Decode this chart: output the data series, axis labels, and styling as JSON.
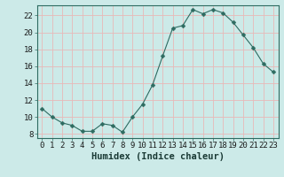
{
  "x": [
    0,
    1,
    2,
    3,
    4,
    5,
    6,
    7,
    8,
    9,
    10,
    11,
    12,
    13,
    14,
    15,
    16,
    17,
    18,
    19,
    20,
    21,
    22,
    23
  ],
  "y": [
    11,
    10,
    9.3,
    9,
    8.3,
    8.3,
    9.2,
    9,
    8.2,
    10,
    11.5,
    13.8,
    17.2,
    20.5,
    20.8,
    22.7,
    22.2,
    22.7,
    22.3,
    21.2,
    19.7,
    18.2,
    16.3,
    15.3
  ],
  "line_color": "#2e6b61",
  "marker": "D",
  "marker_size": 2.5,
  "bg_color": "#cceae8",
  "grid_color": "#e8b8b8",
  "xlabel": "Humidex (Indice chaleur)",
  "ylim": [
    7.5,
    23.2
  ],
  "xlim": [
    -0.5,
    23.5
  ],
  "yticks": [
    8,
    10,
    12,
    14,
    16,
    18,
    20,
    22
  ],
  "xticks": [
    0,
    1,
    2,
    3,
    4,
    5,
    6,
    7,
    8,
    9,
    10,
    11,
    12,
    13,
    14,
    15,
    16,
    17,
    18,
    19,
    20,
    21,
    22,
    23
  ],
  "tick_label_fontsize": 6.5,
  "xlabel_fontsize": 7.5,
  "spine_color": "#2e6b61"
}
